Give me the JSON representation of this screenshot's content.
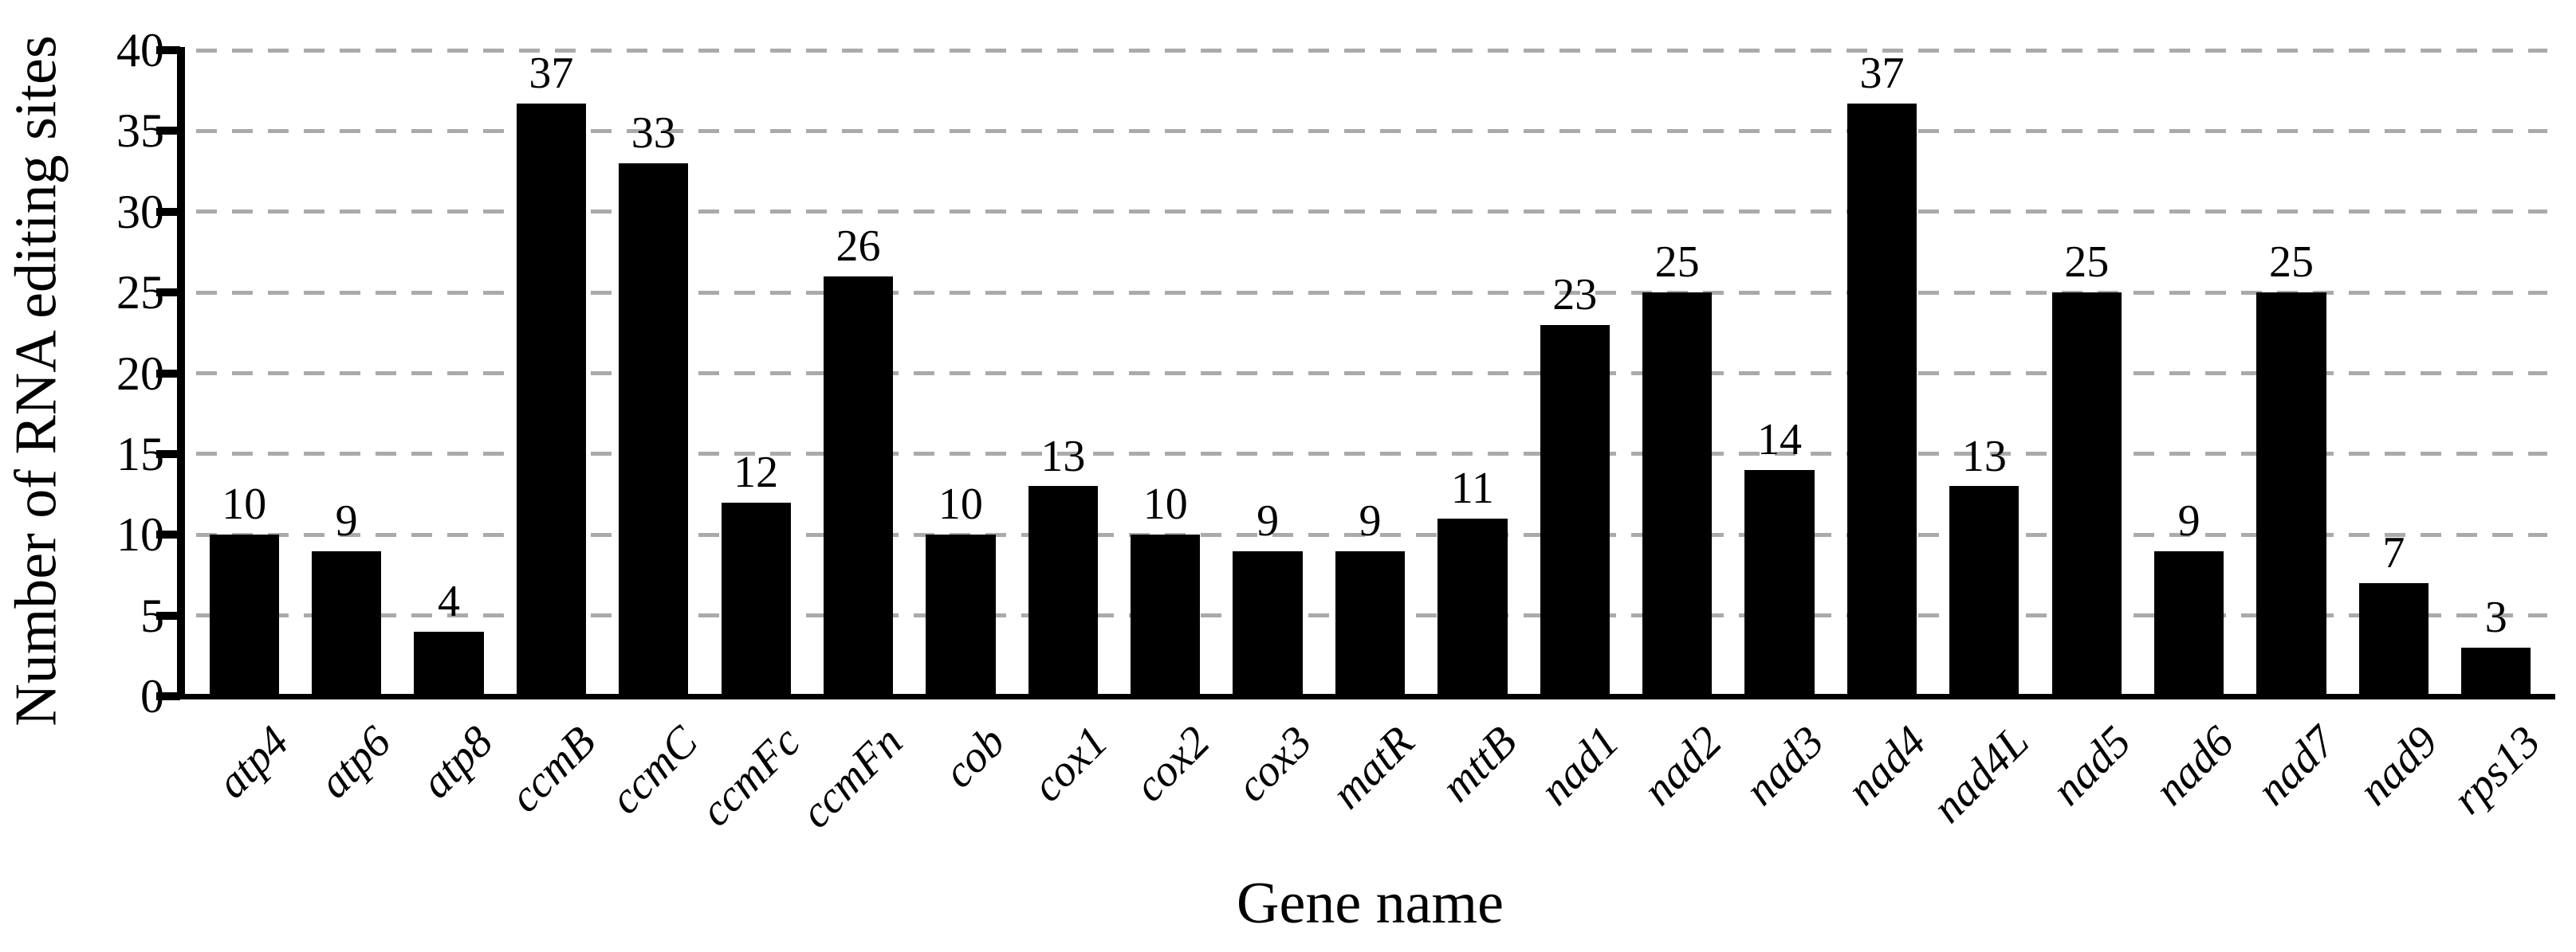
{
  "chart_data": {
    "type": "bar",
    "title": "",
    "xlabel": "Gene name",
    "ylabel": "Number of RNA editing sites",
    "categories": [
      "atp4",
      "atp6",
      "atp8",
      "ccmB",
      "ccmC",
      "ccmFc",
      "ccmFn",
      "cob",
      "cox1",
      "cox2",
      "cox3",
      "matR",
      "mttB",
      "nad1",
      "nad2",
      "nad3",
      "nad4",
      "nad4L",
      "nad5",
      "nad6",
      "nad7",
      "nad9",
      "rps13"
    ],
    "values": [
      10,
      9,
      4,
      37,
      33,
      12,
      26,
      10,
      13,
      10,
      9,
      9,
      11,
      23,
      25,
      14,
      37,
      13,
      25,
      9,
      25,
      7,
      3
    ],
    "ylim": [
      0,
      40
    ],
    "ytick_step": 5,
    "grid": "horizontal-dashed",
    "legend_position": "none",
    "bar_color": "#000000",
    "gridline_color": "#aaaaaa",
    "axis_color": "#000000",
    "background_color": "#ffffff",
    "category_label_style": "italic-rotated-45"
  }
}
